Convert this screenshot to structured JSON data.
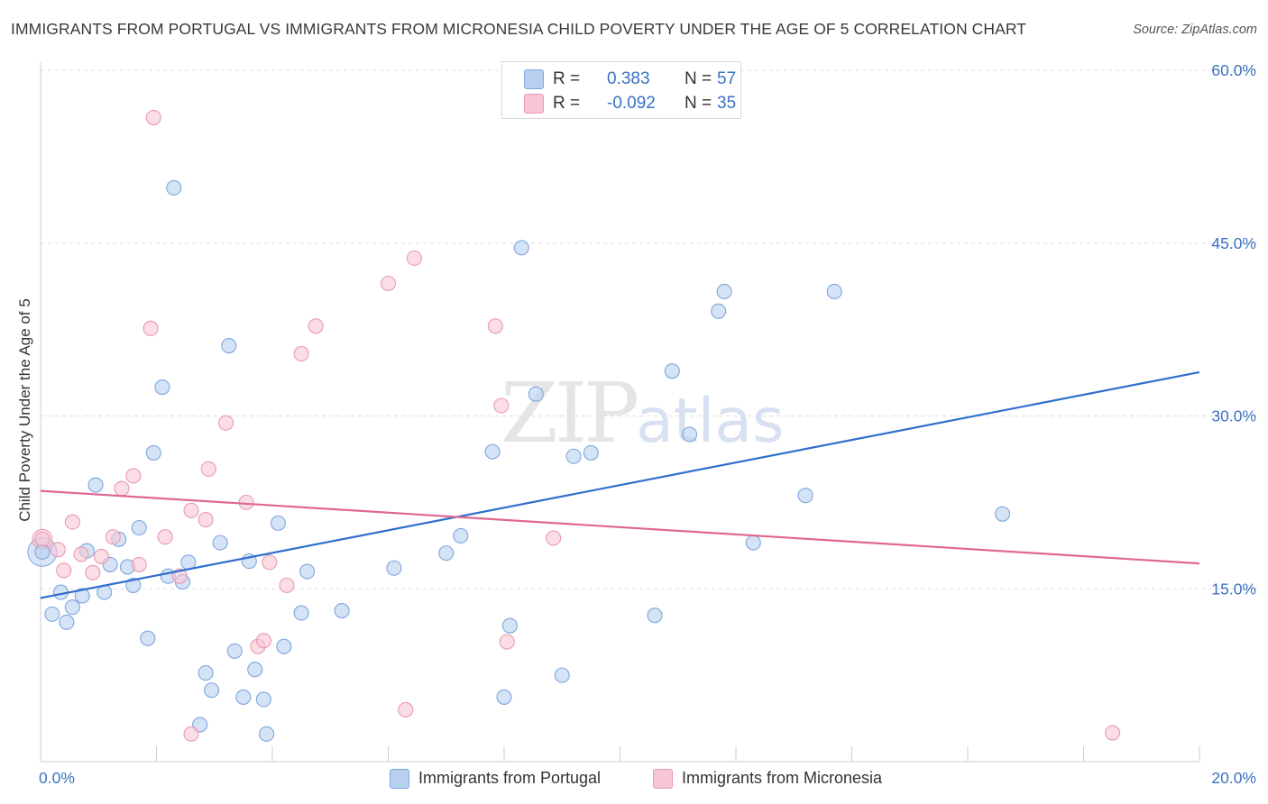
{
  "title": "IMMIGRANTS FROM PORTUGAL VS IMMIGRANTS FROM MICRONESIA CHILD POVERTY UNDER THE AGE OF 5 CORRELATION CHART",
  "source": "Source: ZipAtlas.com",
  "watermark": {
    "zip": "ZIP",
    "atlas": "atlas"
  },
  "legend": {
    "rows": [
      {
        "r_label": "R =",
        "r_value": "0.383",
        "n_label": "N =",
        "n_value": "57"
      },
      {
        "r_label": "R =",
        "r_value": "-0.092",
        "n_label": "N =",
        "n_value": "35"
      }
    ]
  },
  "colors": {
    "portugal_fill": "#b8d0f0",
    "portugal_stroke": "#7fa6dc",
    "portugal_line": "#2f6fce",
    "micronesia_fill": "#f7c6d4",
    "micronesia_stroke": "#e99ab2",
    "micronesia_line": "#e06890",
    "grid": "#dddddd",
    "tick_label": "#3a72c4"
  },
  "chart_data": {
    "type": "scatter",
    "title": "IMMIGRANTS FROM PORTUGAL VS IMMIGRANTS FROM MICRONESIA CHILD POVERTY UNDER THE AGE OF 5 CORRELATION CHART",
    "xlabel": "",
    "ylabel": "Child Poverty Under the Age of 5",
    "xlim": [
      0,
      20
    ],
    "ylim": [
      0,
      60
    ],
    "x_tick_labels": [
      {
        "value": 0,
        "label": "0.0%"
      },
      {
        "value": 20,
        "label": "20.0%"
      }
    ],
    "y_tick_labels": [
      {
        "value": 15,
        "label": "15.0%"
      },
      {
        "value": 30,
        "label": "30.0%"
      },
      {
        "value": 45,
        "label": "45.0%"
      },
      {
        "value": 60,
        "label": "60.0%"
      }
    ],
    "series": [
      {
        "name": "Immigrants from Portugal",
        "r": 0.383,
        "n": 57,
        "trend": {
          "x": [
            0,
            20
          ],
          "y": [
            14.2,
            33.8
          ]
        },
        "points": [
          [
            0.03,
            18.2
          ],
          [
            0.2,
            12.8
          ],
          [
            0.35,
            14.7
          ],
          [
            0.45,
            12.1
          ],
          [
            0.55,
            13.4
          ],
          [
            0.72,
            14.4
          ],
          [
            0.8,
            18.3
          ],
          [
            0.95,
            24.0
          ],
          [
            1.1,
            14.7
          ],
          [
            1.2,
            17.1
          ],
          [
            1.35,
            19.3
          ],
          [
            1.5,
            16.9
          ],
          [
            1.6,
            15.3
          ],
          [
            1.7,
            20.3
          ],
          [
            1.85,
            10.7
          ],
          [
            1.95,
            26.8
          ],
          [
            2.1,
            32.5
          ],
          [
            2.2,
            16.1
          ],
          [
            2.3,
            49.8
          ],
          [
            2.45,
            15.6
          ],
          [
            2.55,
            17.3
          ],
          [
            2.75,
            3.2
          ],
          [
            2.85,
            7.7
          ],
          [
            2.95,
            6.2
          ],
          [
            3.1,
            19.0
          ],
          [
            3.25,
            36.1
          ],
          [
            3.35,
            9.6
          ],
          [
            3.5,
            5.6
          ],
          [
            3.6,
            17.4
          ],
          [
            3.7,
            8.0
          ],
          [
            3.85,
            5.4
          ],
          [
            3.9,
            2.4
          ],
          [
            4.1,
            20.7
          ],
          [
            4.2,
            10.0
          ],
          [
            4.5,
            12.9
          ],
          [
            4.6,
            16.5
          ],
          [
            5.2,
            13.1
          ],
          [
            6.1,
            16.8
          ],
          [
            7.0,
            18.1
          ],
          [
            7.25,
            19.6
          ],
          [
            7.8,
            26.9
          ],
          [
            8.0,
            5.6
          ],
          [
            8.1,
            11.8
          ],
          [
            8.3,
            44.6
          ],
          [
            8.55,
            31.9
          ],
          [
            9.0,
            7.5
          ],
          [
            9.2,
            26.5
          ],
          [
            9.5,
            26.8
          ],
          [
            10.6,
            12.7
          ],
          [
            10.9,
            33.9
          ],
          [
            11.2,
            28.4
          ],
          [
            11.7,
            39.1
          ],
          [
            11.8,
            40.8
          ],
          [
            12.3,
            19.0
          ],
          [
            13.2,
            23.1
          ],
          [
            13.7,
            40.8
          ],
          [
            16.6,
            21.5
          ]
        ]
      },
      {
        "name": "Immigrants from Micronesia",
        "r": -0.092,
        "n": 35,
        "trend": {
          "x": [
            0,
            20
          ],
          "y": [
            23.5,
            17.2
          ]
        },
        "points": [
          [
            0.03,
            19.3
          ],
          [
            0.3,
            18.4
          ],
          [
            0.4,
            16.6
          ],
          [
            0.55,
            20.8
          ],
          [
            0.7,
            18.0
          ],
          [
            0.9,
            16.4
          ],
          [
            1.05,
            17.8
          ],
          [
            1.25,
            19.5
          ],
          [
            1.4,
            23.7
          ],
          [
            1.6,
            24.8
          ],
          [
            1.7,
            17.1
          ],
          [
            1.9,
            37.6
          ],
          [
            1.95,
            55.9
          ],
          [
            2.15,
            19.5
          ],
          [
            2.4,
            16.1
          ],
          [
            2.6,
            2.4
          ],
          [
            2.6,
            21.8
          ],
          [
            2.85,
            21.0
          ],
          [
            2.9,
            25.4
          ],
          [
            3.2,
            29.4
          ],
          [
            3.55,
            22.5
          ],
          [
            3.75,
            10.0
          ],
          [
            3.85,
            10.5
          ],
          [
            3.95,
            17.3
          ],
          [
            4.25,
            15.3
          ],
          [
            4.5,
            35.4
          ],
          [
            4.75,
            37.8
          ],
          [
            6.0,
            41.5
          ],
          [
            6.3,
            4.5
          ],
          [
            6.45,
            43.7
          ],
          [
            7.85,
            37.8
          ],
          [
            7.95,
            30.9
          ],
          [
            8.05,
            10.4
          ],
          [
            8.85,
            19.4
          ],
          [
            18.5,
            2.5
          ]
        ]
      }
    ]
  }
}
